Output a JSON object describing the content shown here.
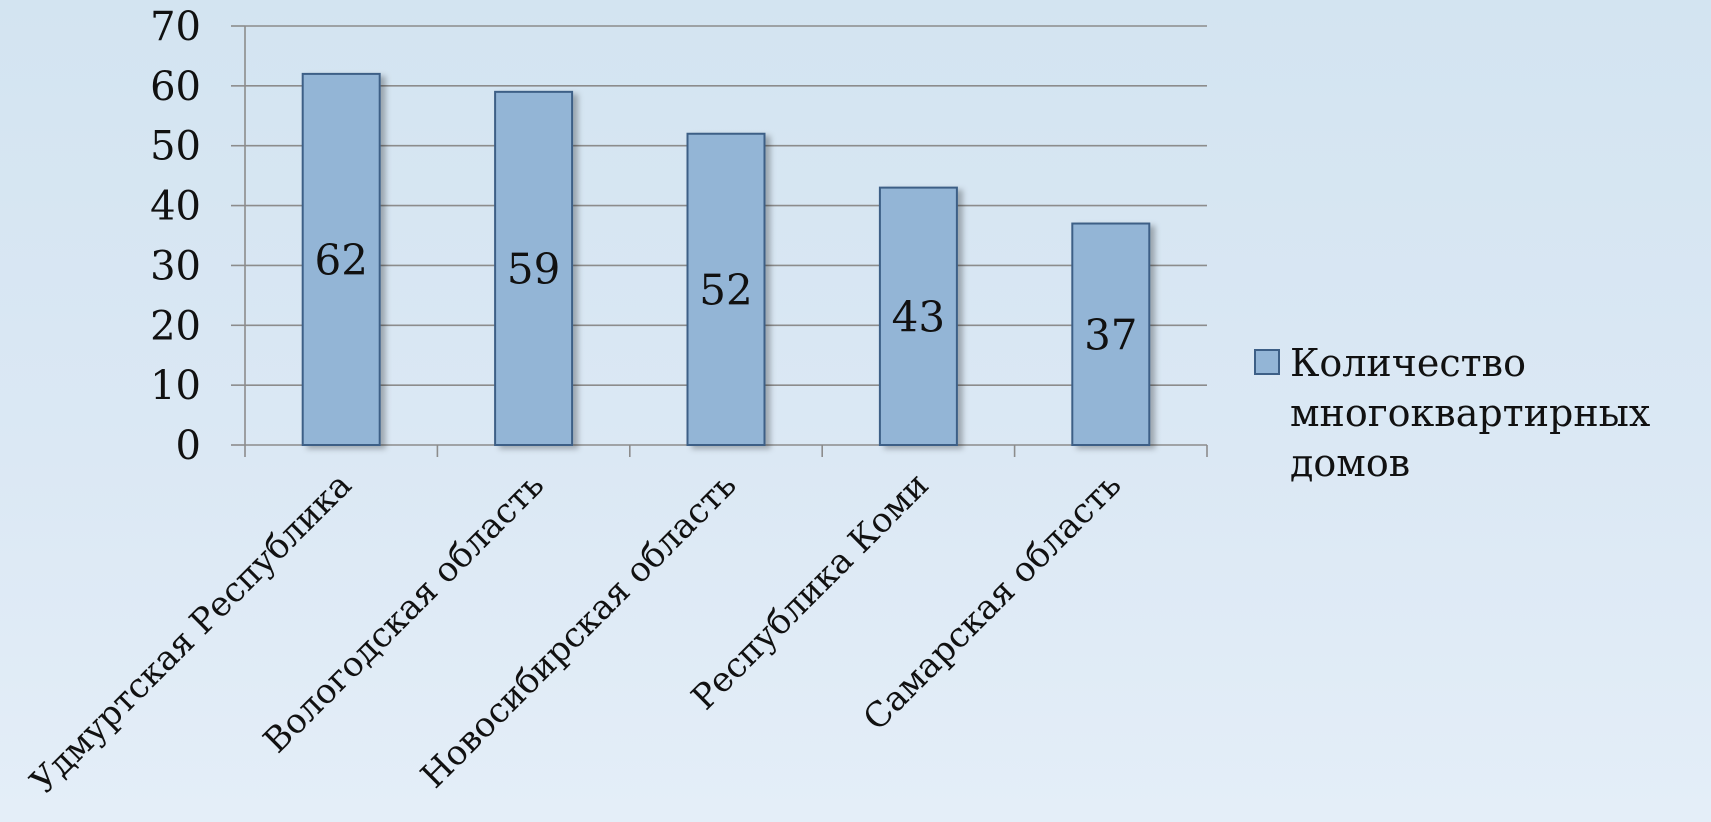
{
  "chart_data": {
    "type": "bar",
    "categories": [
      "Удмуртская Республика",
      "Вологодская область",
      "Новосибирская область",
      "Республика Коми",
      "Самарская область"
    ],
    "series": [
      {
        "name": "Количество многоквартирных домов",
        "values": [
          62,
          59,
          52,
          43,
          37
        ]
      }
    ],
    "ylim": [
      0,
      70
    ],
    "yticks": [
      "0",
      "10",
      "20",
      "30",
      "40",
      "50",
      "60",
      "70"
    ],
    "title": "",
    "xlabel": "",
    "ylabel": "",
    "grid": true,
    "legend_position": "right",
    "data_labels": [
      "62",
      "59",
      "52",
      "43",
      "37"
    ],
    "colors": {
      "bar_fill": "#93b5d6",
      "bar_stroke": "#3d5f86",
      "gridline": "#8c8c8c",
      "axis": "#8c8c8c",
      "background": "#d8e6f2"
    }
  }
}
